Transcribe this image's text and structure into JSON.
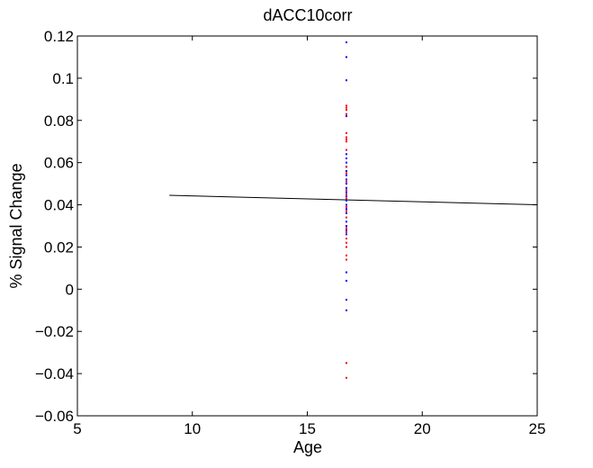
{
  "chart_data": {
    "type": "scatter",
    "title": "dACC10corr",
    "xlabel": "Age",
    "ylabel": "% Signal Change",
    "xlim": [
      5,
      25
    ],
    "ylim": [
      -0.06,
      0.12
    ],
    "x_ticks": [
      5,
      10,
      15,
      20,
      25
    ],
    "x_tick_labels": [
      "5",
      "10",
      "15",
      "20",
      "25"
    ],
    "y_ticks": [
      -0.06,
      -0.04,
      -0.02,
      0,
      0.02,
      0.04,
      0.06,
      0.08,
      0.1,
      0.12
    ],
    "y_tick_labels": [
      "−0.06",
      "−0.04",
      "−0.02",
      "0",
      "0.02",
      "0.04",
      "0.06",
      "0.08",
      "0.1",
      "0.12"
    ],
    "grid": false,
    "series": [
      {
        "color": "#0000ff",
        "x": [
          16.7,
          16.7,
          16.7,
          16.7,
          16.7,
          16.7,
          16.7,
          16.7,
          16.7,
          16.7,
          16.7,
          16.7,
          16.7,
          16.7,
          16.7,
          16.7,
          16.7,
          16.7,
          16.7,
          16.7,
          16.7,
          16.7,
          16.7,
          16.7,
          16.7,
          16.7,
          16.7
        ],
        "y": [
          0.117,
          0.11,
          0.099,
          0.082,
          0.064,
          0.062,
          0.06,
          0.058,
          0.056,
          0.054,
          0.052,
          0.05,
          0.048,
          0.046,
          0.044,
          0.042,
          0.04,
          0.038,
          0.036,
          0.032,
          0.03,
          0.028,
          0.026,
          0.008,
          0.004,
          -0.005,
          -0.01
        ]
      },
      {
        "color": "#ff0000",
        "x": [
          16.7,
          16.7,
          16.7,
          16.7,
          16.7,
          16.7,
          16.7,
          16.7,
          16.7,
          16.7,
          16.7,
          16.7,
          16.7,
          16.7,
          16.7,
          16.7,
          16.7,
          16.7,
          16.7,
          16.7,
          16.7,
          16.7,
          16.7,
          16.7,
          16.7,
          16.7,
          16.7
        ],
        "y": [
          0.087,
          0.086,
          0.085,
          0.083,
          0.074,
          0.072,
          0.071,
          0.07,
          0.066,
          0.058,
          0.055,
          0.051,
          0.047,
          0.045,
          0.043,
          0.039,
          0.037,
          0.034,
          0.029,
          0.027,
          0.024,
          0.022,
          0.02,
          0.016,
          0.014,
          -0.035,
          -0.042
        ]
      }
    ],
    "fit_line": {
      "color": "#000000",
      "x": [
        9,
        25
      ],
      "y": [
        0.0445,
        0.04
      ]
    }
  }
}
